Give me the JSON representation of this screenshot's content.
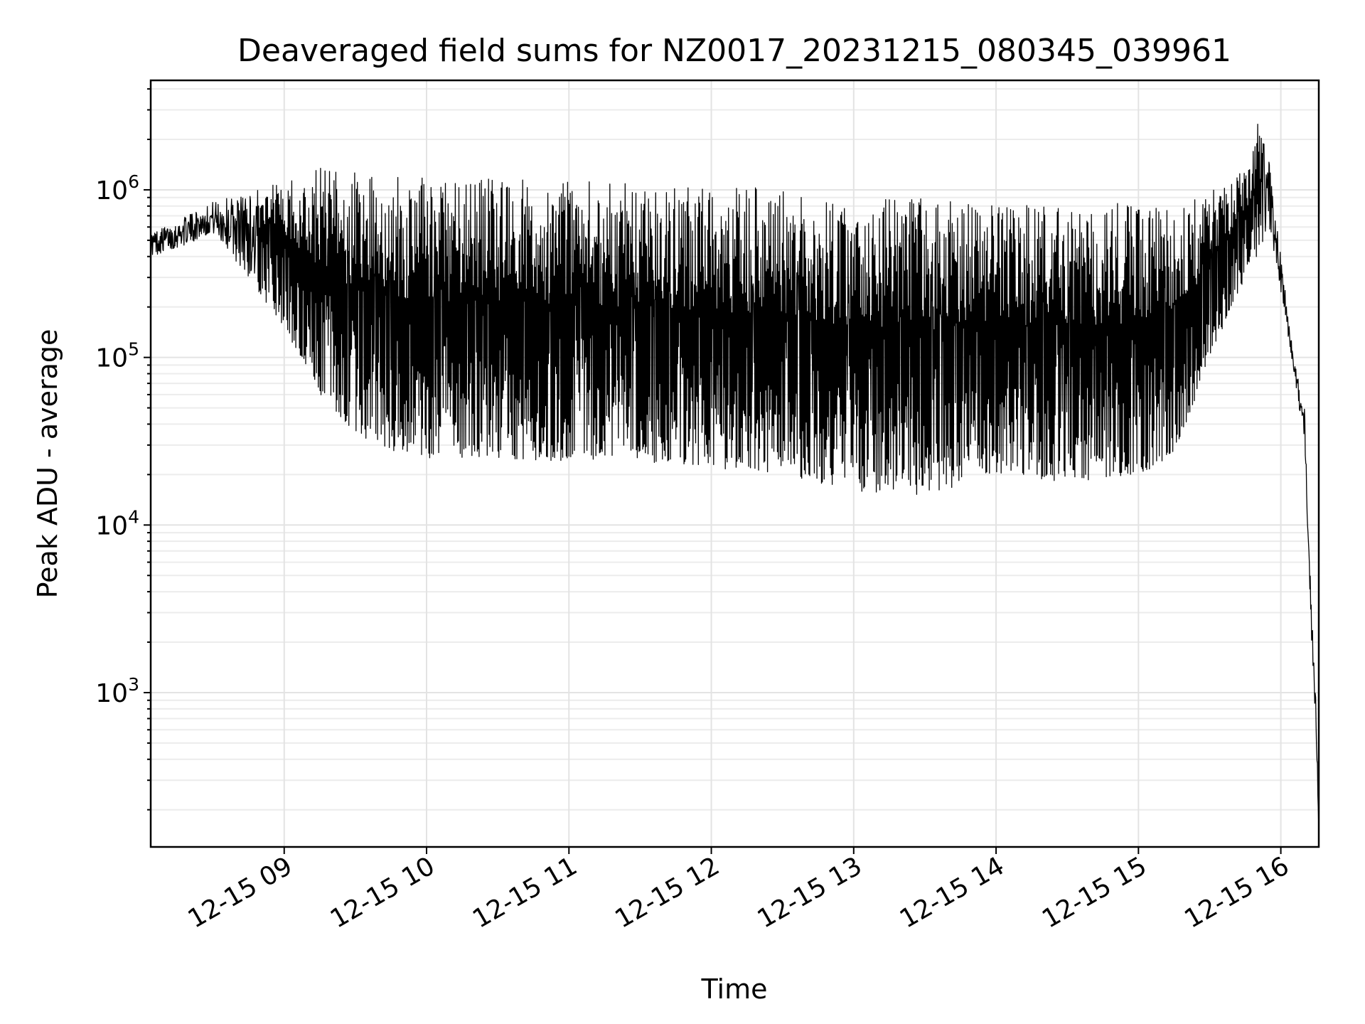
{
  "chart_data": {
    "type": "line",
    "title": "Deaveraged field sums for NZ0017_20231215_080345_039961",
    "xlabel": "Time",
    "ylabel": "Peak ADU - average",
    "yscale": "log",
    "ylim": [
      120,
      4500000
    ],
    "xlim": [
      "2023-12-15 08:03:45",
      "2023-12-15 16:16:00"
    ],
    "grid": true,
    "line_color": "#000000",
    "x_ticks": [
      {
        "label": "12-15 09",
        "value": "2023-12-15 09:00"
      },
      {
        "label": "12-15 10",
        "value": "2023-12-15 10:00"
      },
      {
        "label": "12-15 11",
        "value": "2023-12-15 11:00"
      },
      {
        "label": "12-15 12",
        "value": "2023-12-15 12:00"
      },
      {
        "label": "12-15 13",
        "value": "2023-12-15 13:00"
      },
      {
        "label": "12-15 14",
        "value": "2023-12-15 14:00"
      },
      {
        "label": "12-15 15",
        "value": "2023-12-15 15:00"
      },
      {
        "label": "12-15 16",
        "value": "2023-12-15 16:00"
      }
    ],
    "y_ticks": [
      {
        "value": 1000,
        "base": "10",
        "exp": "3"
      },
      {
        "value": 10000,
        "base": "10",
        "exp": "4"
      },
      {
        "value": 100000,
        "base": "10",
        "exp": "5"
      },
      {
        "value": 1000000,
        "base": "10",
        "exp": "6"
      }
    ],
    "series": [
      {
        "description_of_shape": "envelope",
        "envelope": {
          "time": [
            "08:03:45",
            "08:15",
            "08:30",
            "08:45",
            "09:00",
            "09:15",
            "09:30",
            "09:45",
            "10:00",
            "10:30",
            "11:00",
            "11:30",
            "12:00",
            "12:30",
            "13:00",
            "13:30",
            "14:00",
            "14:30",
            "15:00",
            "15:15",
            "15:30",
            "15:45",
            "15:50",
            "15:55",
            "16:00",
            "16:05",
            "16:10",
            "16:13",
            "16:15",
            "16:16"
          ],
          "upper": [
            560000,
            650000,
            850000,
            1000000,
            1100000,
            1400000,
            1300000,
            1250000,
            1200000,
            1200000,
            1150000,
            1100000,
            1050000,
            1050000,
            950000,
            900000,
            850000,
            800000,
            850000,
            800000,
            1000000,
            1300000,
            2600000,
            1500000,
            400000,
            110000,
            50000,
            3000,
            800,
            150
          ],
          "lower": [
            400000,
            450000,
            550000,
            300000,
            150000,
            60000,
            35000,
            28000,
            25000,
            25000,
            24000,
            24000,
            22000,
            20000,
            16000,
            15000,
            20000,
            18000,
            20000,
            25000,
            100000,
            300000,
            400000,
            600000,
            250000,
            90000,
            30000,
            2000,
            500,
            150
          ]
        }
      }
    ]
  }
}
